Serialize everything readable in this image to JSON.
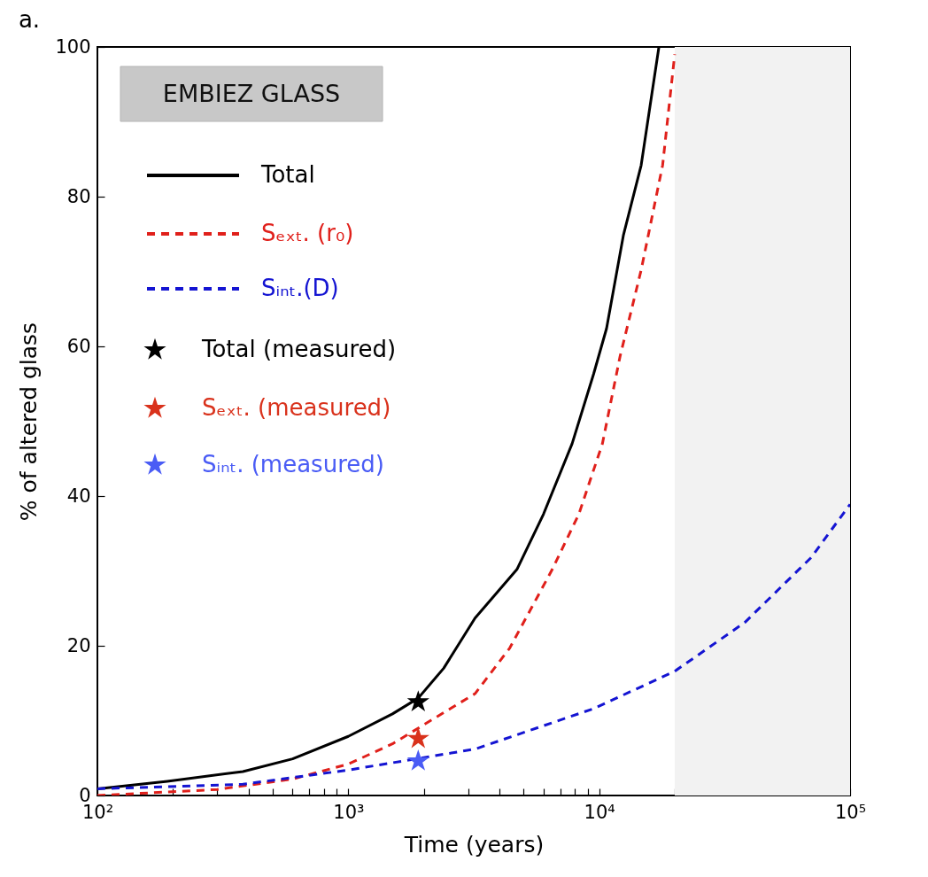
{
  "chart_data": {
    "type": "line",
    "title": "a.",
    "xlabel": "Time (years)",
    "ylabel": "% of altered glass",
    "annotations": [
      "EMBIEZ GLASS"
    ],
    "log": "x",
    "xlim": [
      100,
      100000
    ],
    "ylim": [
      0,
      100
    ],
    "xticks": [
      {
        "value": 100,
        "label": "10²"
      },
      {
        "value": 200,
        "label": null
      },
      {
        "value": 300,
        "label": null
      },
      {
        "value": 400,
        "label": null
      },
      {
        "value": 500,
        "label": null
      },
      {
        "value": 600,
        "label": null
      },
      {
        "value": 700,
        "label": null
      },
      {
        "value": 800,
        "label": null
      },
      {
        "value": 900,
        "label": null
      },
      {
        "value": 1000,
        "label": "10³"
      },
      {
        "value": 2000,
        "label": null
      },
      {
        "value": 3000,
        "label": null
      },
      {
        "value": 4000,
        "label": null
      },
      {
        "value": 5000,
        "label": null
      },
      {
        "value": 6000,
        "label": null
      },
      {
        "value": 7000,
        "label": null
      },
      {
        "value": 8000,
        "label": null
      },
      {
        "value": 9000,
        "label": null
      },
      {
        "value": 10000,
        "label": "10⁴"
      },
      {
        "value": 20000,
        "label": null
      },
      {
        "value": 30000,
        "label": null
      },
      {
        "value": 40000,
        "label": null
      },
      {
        "value": 50000,
        "label": null
      },
      {
        "value": 60000,
        "label": null
      },
      {
        "value": 70000,
        "label": null
      },
      {
        "value": 80000,
        "label": null
      },
      {
        "value": 90000,
        "label": null
      },
      {
        "value": 100000,
        "label": "10⁵"
      }
    ],
    "yticks": [
      0,
      20,
      40,
      60,
      80,
      100
    ],
    "grid": false,
    "legend": "top left",
    "bands": [
      {
        "axis": "x",
        "from": 20000,
        "to": 100000,
        "color": "#f2f2f2"
      }
    ],
    "series": [
      {
        "name": "Total",
        "type": "line",
        "line_style": "solid",
        "color": "#000000",
        "x": [
          100,
          190,
          380,
          600,
          1000,
          1500,
          1900,
          2400,
          3200,
          4700,
          6000,
          7800,
          9500,
          10700,
          12500,
          14700,
          17300
        ],
        "values": [
          0.9,
          1.9,
          3.2,
          4.9,
          7.9,
          10.9,
          13.0,
          17.0,
          23.7,
          30.2,
          37.6,
          47,
          56.3,
          62.4,
          74.9,
          84.2,
          100
        ]
      },
      {
        "name": "Sₑₓₜ. (r₀)",
        "type": "line",
        "line_style": "dashed",
        "color": "#e0201b",
        "x": [
          100,
          300,
          600,
          1000,
          1500,
          2200,
          3200,
          4400,
          6500,
          8300,
          10300,
          12100,
          14700,
          17900,
          20000
        ],
        "values": [
          0,
          0.8,
          2.2,
          4.2,
          6.9,
          10.3,
          13.6,
          19.7,
          30.2,
          37.6,
          47,
          58.6,
          70.2,
          84.2,
          99
        ]
      },
      {
        "name": "Sᵢₙₜ.(D)",
        "type": "line",
        "line_style": "dashed",
        "color": "#1414d2",
        "x": [
          100,
          380,
          1000,
          3200,
          9500,
          20000,
          38000,
          70000,
          100000
        ],
        "values": [
          0.9,
          1.5,
          3.4,
          6.2,
          11.6,
          16.6,
          23.1,
          31.8,
          38.9
        ]
      },
      {
        "name": "Total (measured)",
        "type": "scatter",
        "marker": "star",
        "color": "#000000",
        "x": [
          1900
        ],
        "values": [
          12.5
        ]
      },
      {
        "name": "Sₑₓₜ. (measured)",
        "type": "scatter",
        "marker": "star",
        "color": "#d9321c",
        "x": [
          1900
        ],
        "values": [
          7.6
        ]
      },
      {
        "name": "Sᵢₙₜ. (measured)",
        "type": "scatter",
        "marker": "star",
        "color": "#4a5cf5",
        "x": [
          1900
        ],
        "values": [
          4.6
        ]
      }
    ]
  }
}
